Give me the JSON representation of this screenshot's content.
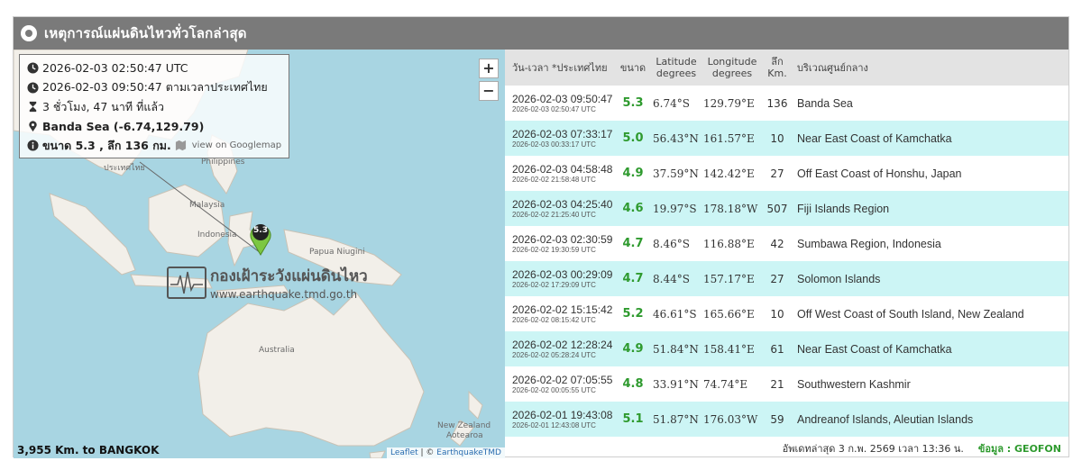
{
  "header": {
    "title": "เหตุการณ์แผ่นดินไหวทั่วโลกล่าสุด"
  },
  "info": {
    "utc_time": "2026-02-03 02:50:47 UTC",
    "thai_time": "2026-02-03 09:50:47 ตามเวลาประเทศไทย",
    "ago": "3 ชั่วโมง, 47 นาที ที่แล้ว",
    "location": "Banda Sea (-6.74,129.79)",
    "magnitude_depth": "ขนาด 5.3 , ลึก 136 กม.",
    "googlemap_link": "view on Googlemap"
  },
  "map": {
    "zoom_in": "+",
    "zoom_out": "−",
    "marker_label": "5.3",
    "labels": {
      "thailand": "ประเทศไทย",
      "philippines": "Philippines",
      "malaysia": "Malaysia",
      "indonesia": "Indonesia",
      "papua": "Papua Niugini",
      "australia": "Australia",
      "nz": "New Zealand",
      "nz2": "Aotearoa"
    },
    "watermark_name": "กองเฝ้าระวังแผ่นดินไหว",
    "watermark_url": "www.earthquake.tmd.go.th",
    "distance": "3,955 Km. to BANGKOK",
    "attribution_leaflet": "Leaflet",
    "attribution_sep": " | © ",
    "attribution_tmd": "EarthquakeTMD"
  },
  "table": {
    "headers": {
      "datetime": "วัน-เวลา *ประเทศไทย",
      "magnitude": "ขนาด",
      "lat1": "Latitude",
      "lat2": "degrees",
      "lon1": "Longitude",
      "lon2": "degrees",
      "depth1": "ลึก",
      "depth2": "Km.",
      "region": "บริเวณศูนย์กลาง"
    },
    "rows": [
      {
        "local": "2026-02-03 09:50:47",
        "utc": "2026-02-03 02:50:47 UTC",
        "mag": "5.3",
        "lat": "6.74°S",
        "lon": "129.79°E",
        "depth": "136",
        "region": "Banda Sea"
      },
      {
        "local": "2026-02-03 07:33:17",
        "utc": "2026-02-03 00:33:17 UTC",
        "mag": "5.0",
        "lat": "56.43°N",
        "lon": "161.57°E",
        "depth": "10",
        "region": "Near East Coast of Kamchatka"
      },
      {
        "local": "2026-02-03 04:58:48",
        "utc": "2026-02-02 21:58:48 UTC",
        "mag": "4.9",
        "lat": "37.59°N",
        "lon": "142.42°E",
        "depth": "27",
        "region": "Off East Coast of Honshu, Japan"
      },
      {
        "local": "2026-02-03 04:25:40",
        "utc": "2026-02-02 21:25:40 UTC",
        "mag": "4.6",
        "lat": "19.97°S",
        "lon": "178.18°W",
        "depth": "507",
        "region": "Fiji Islands Region"
      },
      {
        "local": "2026-02-03 02:30:59",
        "utc": "2026-02-02 19:30:59 UTC",
        "mag": "4.7",
        "lat": "8.46°S",
        "lon": "116.88°E",
        "depth": "42",
        "region": "Sumbawa Region, Indonesia"
      },
      {
        "local": "2026-02-03 00:29:09",
        "utc": "2026-02-02 17:29:09 UTC",
        "mag": "4.7",
        "lat": "8.44°S",
        "lon": "157.17°E",
        "depth": "27",
        "region": "Solomon Islands"
      },
      {
        "local": "2026-02-02 15:15:42",
        "utc": "2026-02-02 08:15:42 UTC",
        "mag": "5.2",
        "lat": "46.61°S",
        "lon": "165.66°E",
        "depth": "10",
        "region": "Off West Coast of South Island, New Zealand"
      },
      {
        "local": "2026-02-02 12:28:24",
        "utc": "2026-02-02 05:28:24 UTC",
        "mag": "4.9",
        "lat": "51.84°N",
        "lon": "158.41°E",
        "depth": "61",
        "region": "Near East Coast of Kamchatka"
      },
      {
        "local": "2026-02-02 07:05:55",
        "utc": "2026-02-02 00:05:55 UTC",
        "mag": "4.8",
        "lat": "33.91°N",
        "lon": "74.74°E",
        "depth": "21",
        "region": "Southwestern Kashmir"
      },
      {
        "local": "2026-02-01 19:43:08",
        "utc": "2026-02-01 12:43:08 UTC",
        "mag": "5.1",
        "lat": "51.87°N",
        "lon": "176.03°W",
        "depth": "59",
        "region": "Andreanof Islands, Aleutian Islands"
      }
    ]
  },
  "footer": {
    "updated": "อัพเดทล่าสุด 3 ก.พ. 2569 เวลา 13:36 น.",
    "source": "ข้อมูล : GEOFON"
  },
  "colors": {
    "header_bg": "#7a7a7a",
    "row_alt": "#ccf5f5",
    "magnitude": "#2e9a2e",
    "ocean": "#a8d5e2",
    "land": "#f2efe9"
  },
  "icons": [
    "clock-icon",
    "hourglass-icon",
    "map-pin-icon",
    "info-icon",
    "map-icon"
  ]
}
